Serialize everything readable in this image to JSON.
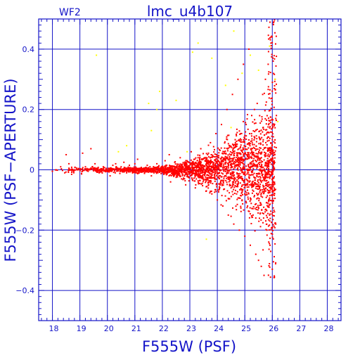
{
  "chart_data": {
    "type": "scatter",
    "title": "lmc_u4b107",
    "corner_label": "WF2",
    "xlabel": "F555W (PSF)",
    "ylabel": "F555W (PSF−APERTURE)",
    "xlim": [
      17.5,
      28.5
    ],
    "ylim": [
      -0.5,
      0.5
    ],
    "x_ticks": [
      18,
      19,
      20,
      21,
      22,
      23,
      24,
      25,
      26,
      27,
      28
    ],
    "y_ticks": [
      -0.4,
      -0.2,
      0,
      0.2,
      0.4
    ],
    "x_tick_labels": [
      "18",
      "19",
      "20",
      "21",
      "22",
      "23",
      "24",
      "25",
      "26",
      "27",
      "28"
    ],
    "y_tick_labels": [
      "−0.4",
      "−0.2",
      "0",
      "0.2",
      "0.4"
    ],
    "grid": true,
    "colors": {
      "axis": "#1414c8",
      "main_series": "#ff0000",
      "secondary_series": "#ffff00"
    },
    "series": [
      {
        "color": "#ff0000",
        "points": [
          [
            18.0,
            -0.005
          ],
          [
            18.3,
            0.01
          ],
          [
            18.45,
            -0.01
          ],
          [
            18.5,
            0.05
          ],
          [
            18.6,
            0.02
          ],
          [
            18.7,
            -0.015
          ],
          [
            18.9,
            0.0
          ],
          [
            19.1,
            0.055
          ],
          [
            19.2,
            0.01
          ],
          [
            19.3,
            -0.005
          ],
          [
            19.4,
            0.07
          ],
          [
            19.45,
            0.01
          ],
          [
            19.55,
            0.02
          ],
          [
            19.7,
            -0.01
          ],
          [
            19.85,
            0.01
          ],
          [
            19.95,
            0.005
          ],
          [
            20.1,
            -0.02
          ],
          [
            20.2,
            0.015
          ],
          [
            20.3,
            0.02
          ],
          [
            20.4,
            0.0
          ],
          [
            20.5,
            0.01
          ],
          [
            20.6,
            0.025
          ],
          [
            20.7,
            -0.01
          ],
          [
            20.8,
            0.015
          ],
          [
            20.9,
            0.005
          ],
          [
            21.0,
            0.02
          ],
          [
            21.05,
            -0.005
          ],
          [
            21.1,
            0.035
          ],
          [
            21.2,
            0.0
          ],
          [
            21.3,
            0.005
          ],
          [
            21.35,
            -0.012
          ],
          [
            21.45,
            0.015
          ],
          [
            21.55,
            0.01
          ],
          [
            21.6,
            -0.02
          ],
          [
            21.7,
            0.008
          ],
          [
            21.8,
            0.02
          ],
          [
            21.9,
            -0.008
          ],
          [
            22.0,
            0.012
          ],
          [
            22.05,
            -0.015
          ],
          [
            22.1,
            0.03
          ],
          [
            22.2,
            -0.005
          ],
          [
            22.25,
            0.05
          ],
          [
            22.3,
            -0.04
          ],
          [
            22.4,
            0.01
          ],
          [
            22.45,
            0.025
          ],
          [
            22.5,
            -0.025
          ],
          [
            22.6,
            0.0
          ],
          [
            22.65,
            0.04
          ],
          [
            22.7,
            -0.03
          ],
          [
            22.8,
            0.015
          ],
          [
            22.85,
            -0.05
          ],
          [
            22.9,
            0.03
          ],
          [
            23.0,
            -0.01
          ],
          [
            23.05,
            0.06
          ],
          [
            23.1,
            -0.035
          ],
          [
            23.15,
            0.02
          ],
          [
            23.2,
            -0.06
          ],
          [
            23.25,
            0.01
          ],
          [
            23.3,
            0.04
          ],
          [
            23.35,
            -0.02
          ],
          [
            23.4,
            0.07
          ],
          [
            23.45,
            -0.045
          ],
          [
            23.5,
            0.0
          ],
          [
            23.55,
            0.03
          ],
          [
            23.6,
            -0.07
          ],
          [
            23.65,
            0.05
          ],
          [
            23.7,
            -0.01
          ],
          [
            23.75,
            0.09
          ],
          [
            23.8,
            -0.08
          ],
          [
            23.85,
            0.02
          ],
          [
            23.9,
            -0.03
          ],
          [
            23.95,
            0.12
          ],
          [
            24.0,
            -0.1
          ],
          [
            24.05,
            0.04
          ],
          [
            24.1,
            -0.05
          ],
          [
            24.15,
            0.15
          ],
          [
            24.2,
            -0.12
          ],
          [
            24.25,
            0.06
          ],
          [
            24.3,
            -0.02
          ],
          [
            24.35,
            0.2
          ],
          [
            24.4,
            -0.15
          ],
          [
            24.45,
            0.08
          ],
          [
            24.5,
            -0.06
          ],
          [
            24.55,
            0.25
          ],
          [
            24.6,
            -0.18
          ],
          [
            24.65,
            0.1
          ],
          [
            24.7,
            -0.08
          ],
          [
            24.75,
            0.3
          ],
          [
            24.8,
            -0.2
          ],
          [
            24.85,
            0.12
          ],
          [
            24.9,
            -0.1
          ],
          [
            24.95,
            0.35
          ],
          [
            25.0,
            -0.22
          ],
          [
            25.05,
            0.15
          ],
          [
            25.1,
            -0.12
          ],
          [
            25.15,
            0.4
          ],
          [
            25.2,
            -0.25
          ],
          [
            25.25,
            0.18
          ],
          [
            25.3,
            -0.15
          ],
          [
            25.35,
            0.2
          ],
          [
            25.4,
            -0.28
          ],
          [
            25.45,
            0.22
          ],
          [
            25.5,
            -0.3
          ],
          [
            25.55,
            0.1
          ],
          [
            25.6,
            -0.32
          ],
          [
            25.65,
            0.25
          ],
          [
            25.7,
            -0.35
          ],
          [
            25.75,
            0.3
          ],
          [
            25.8,
            -0.2
          ],
          [
            25.85,
            0.35
          ],
          [
            25.9,
            -0.15
          ],
          [
            25.95,
            0.42
          ],
          [
            26.0,
            0.1
          ],
          [
            26.05,
            -0.05
          ],
          [
            26.1,
            0.3
          ]
        ]
      },
      {
        "color": "#ffff00",
        "points": [
          [
            19.6,
            0.38
          ],
          [
            20.4,
            0.06
          ],
          [
            20.7,
            0.08
          ],
          [
            21.5,
            0.22
          ],
          [
            21.8,
            0.2
          ],
          [
            21.9,
            0.26
          ],
          [
            21.6,
            0.13
          ],
          [
            22.5,
            0.23
          ],
          [
            22.9,
            0.06
          ],
          [
            23.1,
            0.39
          ],
          [
            23.3,
            0.42
          ],
          [
            23.6,
            -0.23
          ],
          [
            23.8,
            0.37
          ],
          [
            24.3,
            0.28
          ],
          [
            24.5,
            0.14
          ],
          [
            24.6,
            0.46
          ],
          [
            24.9,
            0.32
          ],
          [
            25.2,
            0.38
          ],
          [
            25.5,
            0.33
          ],
          [
            25.9,
            0.41
          ],
          [
            26.1,
            0.3
          ],
          [
            26.2,
            0.16
          ]
        ]
      }
    ]
  }
}
